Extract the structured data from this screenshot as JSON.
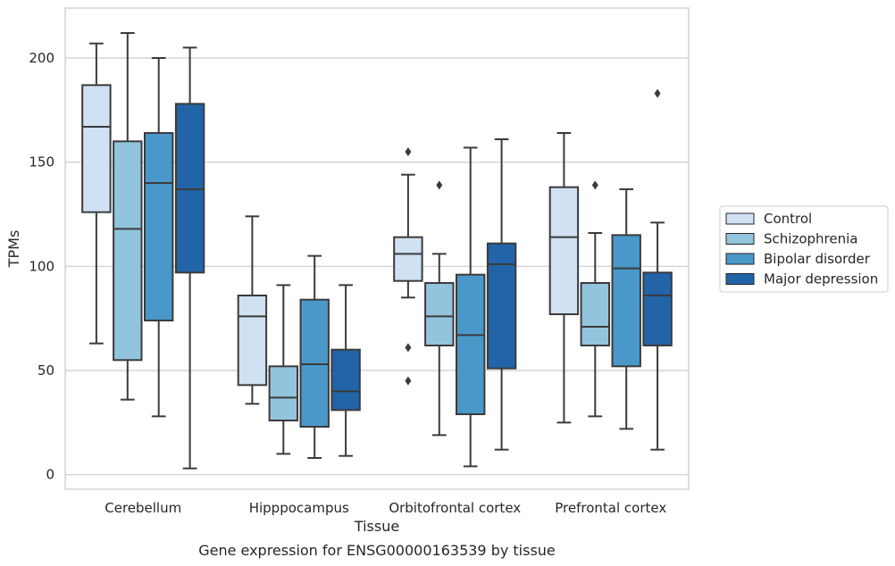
{
  "chart_data": {
    "type": "boxplot",
    "title": "",
    "caption": "Gene expression for ENSG00000163539 by tissue",
    "xlabel": "Tissue",
    "ylabel": "TPMs",
    "ylim": [
      -7,
      224
    ],
    "yticks": [
      0,
      50,
      100,
      150,
      200
    ],
    "grid": "horizontal",
    "legend_position": "right",
    "categories": [
      "Cerebellum",
      "Hipppocampus",
      "Orbitofrontal cortex",
      "Prefrontal cortex"
    ],
    "series": [
      {
        "name": "Control",
        "color": "#cfe1f2",
        "boxes": [
          {
            "whislo": 63,
            "q1": 126,
            "med": 167,
            "q3": 187,
            "whishi": 207,
            "fliers": []
          },
          {
            "whislo": 34,
            "q1": 43,
            "med": 76,
            "q3": 86,
            "whishi": 124,
            "fliers": []
          },
          {
            "whislo": 85,
            "q1": 93,
            "med": 106,
            "q3": 114,
            "whishi": 144,
            "fliers": [
              155,
              61,
              45
            ]
          },
          {
            "whislo": 25,
            "q1": 77,
            "med": 114,
            "q3": 138,
            "whishi": 164,
            "fliers": []
          }
        ]
      },
      {
        "name": "Schizophrenia",
        "color": "#93c4de",
        "boxes": [
          {
            "whislo": 36,
            "q1": 55,
            "med": 118,
            "q3": 160,
            "whishi": 212,
            "fliers": []
          },
          {
            "whislo": 10,
            "q1": 26,
            "med": 37,
            "q3": 52,
            "whishi": 91,
            "fliers": []
          },
          {
            "whislo": 19,
            "q1": 62,
            "med": 76,
            "q3": 92,
            "whishi": 106,
            "fliers": [
              139
            ]
          },
          {
            "whislo": 28,
            "q1": 62,
            "med": 71,
            "q3": 92,
            "whishi": 116,
            "fliers": [
              139
            ]
          }
        ]
      },
      {
        "name": "Bipolar disorder",
        "color": "#4a98c9",
        "boxes": [
          {
            "whislo": 28,
            "q1": 74,
            "med": 140,
            "q3": 164,
            "whishi": 200,
            "fliers": []
          },
          {
            "whislo": 8,
            "q1": 23,
            "med": 53,
            "q3": 84,
            "whishi": 105,
            "fliers": []
          },
          {
            "whislo": 4,
            "q1": 29,
            "med": 67,
            "q3": 96,
            "whishi": 157,
            "fliers": []
          },
          {
            "whislo": 22,
            "q1": 52,
            "med": 99,
            "q3": 115,
            "whishi": 137,
            "fliers": []
          }
        ]
      },
      {
        "name": "Major depression",
        "color": "#2264a8",
        "boxes": [
          {
            "whislo": 3,
            "q1": 97,
            "med": 137,
            "q3": 178,
            "whishi": 205,
            "fliers": []
          },
          {
            "whislo": 9,
            "q1": 31,
            "med": 40,
            "q3": 60,
            "whishi": 91,
            "fliers": []
          },
          {
            "whislo": 12,
            "q1": 51,
            "med": 101,
            "q3": 111,
            "whishi": 161,
            "fliers": []
          },
          {
            "whislo": 12,
            "q1": 62,
            "med": 86,
            "q3": 97,
            "whishi": 121,
            "fliers": [
              183
            ]
          }
        ]
      }
    ]
  }
}
